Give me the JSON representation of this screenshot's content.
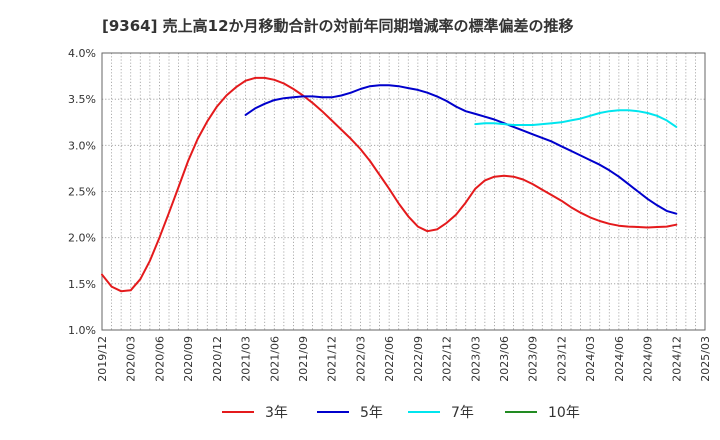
{
  "chart_data": {
    "type": "line",
    "title": "[9364]  売上高12か月移動合計の対前年同期増減率の標準偏差の推移",
    "xlabel": "",
    "ylabel": "",
    "ylim": [
      1.0,
      4.0
    ],
    "y_ticks": [
      "1.0%",
      "1.5%",
      "2.0%",
      "2.5%",
      "3.0%",
      "3.5%",
      "4.0%"
    ],
    "x_ticks": [
      "2019/12",
      "2020/03",
      "2020/06",
      "2020/09",
      "2020/12",
      "2021/03",
      "2021/06",
      "2021/09",
      "2021/12",
      "2022/03",
      "2022/06",
      "2022/09",
      "2022/12",
      "2023/03",
      "2023/06",
      "2023/09",
      "2023/12",
      "2024/03",
      "2024/06",
      "2024/09",
      "2024/12",
      "2025/03"
    ],
    "grid": true,
    "legend_position": "bottom",
    "series": [
      {
        "name": "3年",
        "color": "#e41a1c",
        "x": [
          "2019/12",
          "2020/01",
          "2020/02",
          "2020/03",
          "2020/04",
          "2020/05",
          "2020/06",
          "2020/07",
          "2020/08",
          "2020/09",
          "2020/10",
          "2020/11",
          "2020/12",
          "2021/01",
          "2021/02",
          "2021/03",
          "2021/04",
          "2021/05",
          "2021/06",
          "2021/07",
          "2021/08",
          "2021/09",
          "2021/10",
          "2021/11",
          "2021/12",
          "2022/01",
          "2022/02",
          "2022/03",
          "2022/04",
          "2022/05",
          "2022/06",
          "2022/07",
          "2022/08",
          "2022/09",
          "2022/10",
          "2022/11",
          "2022/12",
          "2023/01",
          "2023/02",
          "2023/03",
          "2023/04",
          "2023/05",
          "2023/06",
          "2023/07",
          "2023/08",
          "2023/09",
          "2023/10",
          "2023/11",
          "2023/12",
          "2024/01",
          "2024/02",
          "2024/03",
          "2024/04",
          "2024/05",
          "2024/06",
          "2024/07",
          "2024/08",
          "2024/09",
          "2024/10",
          "2024/11",
          "2024/12"
        ],
        "values": [
          1.6,
          1.47,
          1.42,
          1.43,
          1.55,
          1.75,
          2.0,
          2.27,
          2.55,
          2.83,
          3.07,
          3.26,
          3.42,
          3.54,
          3.63,
          3.7,
          3.73,
          3.73,
          3.71,
          3.67,
          3.61,
          3.54,
          3.46,
          3.37,
          3.27,
          3.17,
          3.07,
          2.96,
          2.83,
          2.68,
          2.53,
          2.37,
          2.23,
          2.12,
          2.07,
          2.09,
          2.16,
          2.25,
          2.38,
          2.53,
          2.62,
          2.66,
          2.67,
          2.66,
          2.63,
          2.58,
          2.52,
          2.46,
          2.4,
          2.33,
          2.27,
          2.22,
          2.18,
          2.15,
          2.13,
          2.12,
          2.115,
          2.11,
          2.115,
          2.12,
          2.14
        ]
      },
      {
        "name": "5年",
        "color": "#0000cc",
        "x": [
          "2021/03",
          "2021/04",
          "2021/05",
          "2021/06",
          "2021/07",
          "2021/08",
          "2021/09",
          "2021/10",
          "2021/11",
          "2021/12",
          "2022/01",
          "2022/02",
          "2022/03",
          "2022/04",
          "2022/05",
          "2022/06",
          "2022/07",
          "2022/08",
          "2022/09",
          "2022/10",
          "2022/11",
          "2022/12",
          "2023/01",
          "2023/02",
          "2023/03",
          "2023/04",
          "2023/05",
          "2023/06",
          "2023/07",
          "2023/08",
          "2023/09",
          "2023/10",
          "2023/11",
          "2023/12",
          "2024/01",
          "2024/02",
          "2024/03",
          "2024/04",
          "2024/05",
          "2024/06",
          "2024/07",
          "2024/08",
          "2024/09",
          "2024/10",
          "2024/11",
          "2024/12"
        ],
        "values": [
          3.33,
          3.4,
          3.45,
          3.49,
          3.51,
          3.52,
          3.53,
          3.53,
          3.52,
          3.52,
          3.54,
          3.57,
          3.61,
          3.64,
          3.65,
          3.65,
          3.64,
          3.62,
          3.6,
          3.57,
          3.53,
          3.48,
          3.42,
          3.37,
          3.34,
          3.31,
          3.28,
          3.24,
          3.2,
          3.16,
          3.12,
          3.08,
          3.04,
          2.99,
          2.94,
          2.89,
          2.84,
          2.79,
          2.73,
          2.66,
          2.58,
          2.5,
          2.42,
          2.35,
          2.29,
          2.26
        ]
      },
      {
        "name": "7年",
        "color": "#00e5ee",
        "x": [
          "2023/03",
          "2023/04",
          "2023/05",
          "2023/06",
          "2023/07",
          "2023/08",
          "2023/09",
          "2023/10",
          "2023/11",
          "2023/12",
          "2024/01",
          "2024/02",
          "2024/03",
          "2024/04",
          "2024/05",
          "2024/06",
          "2024/07",
          "2024/08",
          "2024/09",
          "2024/10",
          "2024/11",
          "2024/12"
        ],
        "values": [
          3.23,
          3.24,
          3.24,
          3.23,
          3.22,
          3.22,
          3.22,
          3.23,
          3.24,
          3.25,
          3.27,
          3.29,
          3.32,
          3.35,
          3.37,
          3.38,
          3.38,
          3.37,
          3.35,
          3.32,
          3.27,
          3.2
        ]
      },
      {
        "name": "10年",
        "color": "#228b22",
        "x": [],
        "values": []
      }
    ]
  }
}
